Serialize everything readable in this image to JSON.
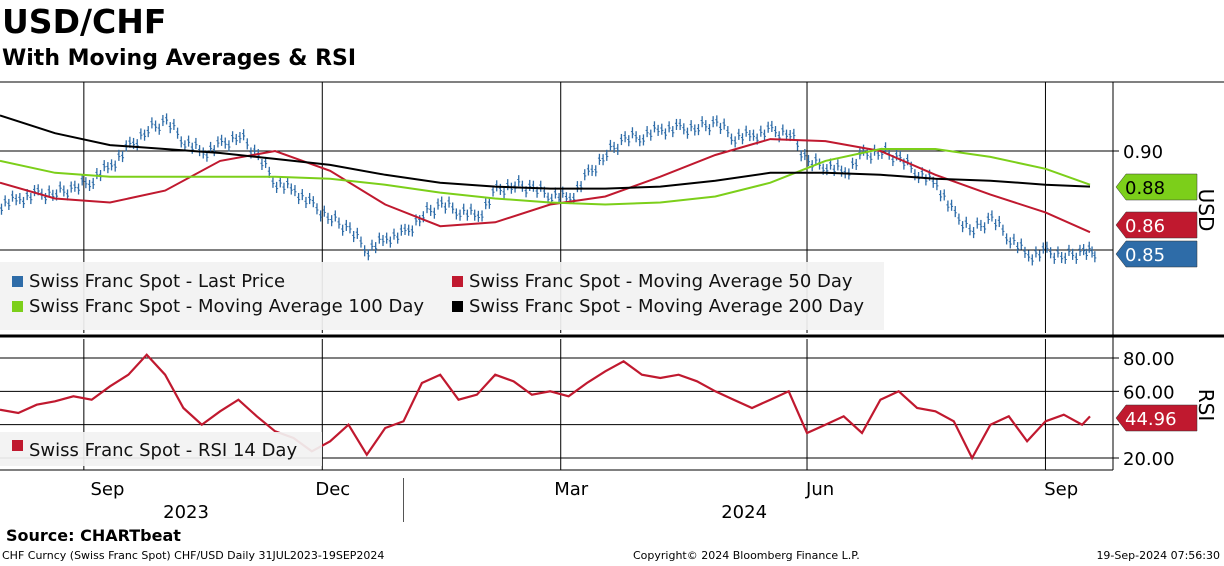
{
  "header": {
    "title": "USD/CHF",
    "subtitle": "With Moving Averages & RSI"
  },
  "source": "Source: CHARTbeat",
  "footer": {
    "left": "CHF Curncy (Swiss Franc Spot) CHF/USD  Daily 31JUL2023-19SEP2024",
    "center": "Copyright© 2024 Bloomberg Finance L.P.",
    "right": "19-Sep-2024 07:56:30"
  },
  "colors": {
    "last_price": "#2e6ca8",
    "ma50": "#c0192f",
    "ma100": "#7ccf1a",
    "ma200": "#000000",
    "rsi": "#c0192f",
    "legend_bg": "#f2f2f2",
    "grid": "#000000"
  },
  "chart_data": [
    {
      "type": "line",
      "panel": "price",
      "ylabel": "USD",
      "y_ticks": [
        0.9
      ],
      "y_tick_labels": [
        "0.90"
      ],
      "x_ticks": [
        "Sep",
        "Dec",
        "Mar",
        "Jun",
        "Sep"
      ],
      "x_years": [
        "2023",
        "2024"
      ],
      "x_range": [
        "2023-07-31",
        "2024-09-19"
      ],
      "grid": true,
      "legend_placement": "bottom-left",
      "last_value_labels": [
        {
          "series": "Swiss Franc Spot - Moving Average 100 Day",
          "label": "0.88",
          "value": 0.88
        },
        {
          "series": "Swiss Franc Spot - Moving Average 50 Day",
          "label": "0.86",
          "value": 0.86
        },
        {
          "series": "Swiss Franc Spot - Last Price",
          "label": "0.85",
          "value": 0.85
        }
      ],
      "series": [
        {
          "name": "Swiss Franc Spot - Last Price",
          "style": "bars",
          "x": [
            "2023-07-31",
            "2023-08-07",
            "2023-08-14",
            "2023-08-21",
            "2023-08-28",
            "2023-09-04",
            "2023-09-11",
            "2023-09-18",
            "2023-09-25",
            "2023-10-02",
            "2023-10-09",
            "2023-10-16",
            "2023-10-23",
            "2023-10-30",
            "2023-11-06",
            "2023-11-13",
            "2023-11-20",
            "2023-11-27",
            "2023-12-04",
            "2023-12-11",
            "2023-12-18",
            "2023-12-25",
            "2024-01-01",
            "2024-01-08",
            "2024-01-15",
            "2024-01-22",
            "2024-01-29",
            "2024-02-05",
            "2024-02-12",
            "2024-02-19",
            "2024-02-26",
            "2024-03-04",
            "2024-03-11",
            "2024-03-18",
            "2024-03-25",
            "2024-04-01",
            "2024-04-08",
            "2024-04-15",
            "2024-04-22",
            "2024-04-29",
            "2024-05-06",
            "2024-05-13",
            "2024-05-20",
            "2024-05-27",
            "2024-06-03",
            "2024-06-10",
            "2024-06-17",
            "2024-06-24",
            "2024-07-01",
            "2024-07-08",
            "2024-07-15",
            "2024-07-22",
            "2024-07-29",
            "2024-08-05",
            "2024-08-12",
            "2024-08-19",
            "2024-08-26",
            "2024-09-02",
            "2024-09-09",
            "2024-09-16"
          ],
          "values": [
            0.873,
            0.876,
            0.878,
            0.879,
            0.881,
            0.886,
            0.893,
            0.902,
            0.911,
            0.915,
            0.905,
            0.899,
            0.903,
            0.908,
            0.897,
            0.884,
            0.88,
            0.872,
            0.866,
            0.86,
            0.85,
            0.856,
            0.858,
            0.868,
            0.873,
            0.87,
            0.867,
            0.88,
            0.883,
            0.881,
            0.878,
            0.876,
            0.888,
            0.899,
            0.906,
            0.908,
            0.911,
            0.911,
            0.912,
            0.914,
            0.907,
            0.908,
            0.91,
            0.909,
            0.894,
            0.893,
            0.889,
            0.898,
            0.9,
            0.896,
            0.889,
            0.883,
            0.867,
            0.86,
            0.866,
            0.856,
            0.847,
            0.849,
            0.847,
            0.849
          ]
        },
        {
          "name": "Swiss Franc Spot - Moving Average 50 Day",
          "style": "line",
          "x": [
            "2023-07-31",
            "2023-08-21",
            "2023-09-11",
            "2023-10-02",
            "2023-10-23",
            "2023-11-13",
            "2023-12-04",
            "2023-12-25",
            "2024-01-15",
            "2024-02-05",
            "2024-02-26",
            "2024-03-18",
            "2024-04-08",
            "2024-04-29",
            "2024-05-20",
            "2024-06-10",
            "2024-07-01",
            "2024-07-22",
            "2024-08-12",
            "2024-09-02",
            "2024-09-19"
          ],
          "values": [
            0.884,
            0.876,
            0.874,
            0.88,
            0.895,
            0.9,
            0.89,
            0.873,
            0.862,
            0.864,
            0.873,
            0.877,
            0.887,
            0.898,
            0.906,
            0.905,
            0.9,
            0.888,
            0.878,
            0.869,
            0.859
          ]
        },
        {
          "name": "Swiss Franc Spot - Moving Average 100 Day",
          "style": "line",
          "x": [
            "2023-07-31",
            "2023-08-21",
            "2023-09-11",
            "2023-10-02",
            "2023-10-23",
            "2023-11-13",
            "2023-12-04",
            "2023-12-25",
            "2024-01-15",
            "2024-02-05",
            "2024-02-26",
            "2024-03-18",
            "2024-04-08",
            "2024-04-29",
            "2024-05-20",
            "2024-06-10",
            "2024-07-01",
            "2024-07-22",
            "2024-08-12",
            "2024-09-02",
            "2024-09-19"
          ],
          "values": [
            0.895,
            0.889,
            0.887,
            0.887,
            0.887,
            0.887,
            0.886,
            0.883,
            0.879,
            0.876,
            0.874,
            0.873,
            0.874,
            0.877,
            0.884,
            0.895,
            0.901,
            0.901,
            0.897,
            0.891,
            0.883
          ]
        },
        {
          "name": "Swiss Franc Spot - Moving Average 200 Day",
          "style": "line",
          "x": [
            "2023-07-31",
            "2023-08-21",
            "2023-09-11",
            "2023-10-02",
            "2023-10-23",
            "2023-11-13",
            "2023-12-04",
            "2023-12-25",
            "2024-01-15",
            "2024-02-05",
            "2024-02-26",
            "2024-03-18",
            "2024-04-08",
            "2024-04-29",
            "2024-05-20",
            "2024-06-10",
            "2024-07-01",
            "2024-07-22",
            "2024-08-12",
            "2024-09-02",
            "2024-09-19"
          ],
          "values": [
            0.918,
            0.909,
            0.903,
            0.901,
            0.899,
            0.896,
            0.893,
            0.888,
            0.884,
            0.882,
            0.881,
            0.881,
            0.882,
            0.885,
            0.889,
            0.889,
            0.888,
            0.886,
            0.885,
            0.883,
            0.882
          ]
        }
      ]
    },
    {
      "type": "line",
      "panel": "rsi",
      "ylabel": "RSI",
      "y_ticks": [
        20,
        40,
        60,
        80
      ],
      "y_tick_labels": [
        "20.00",
        "",
        "60.00",
        "80.00"
      ],
      "grid": true,
      "legend_placement": "bottom-left",
      "last_value_labels": [
        {
          "series": "Swiss Franc Spot - RSI 14 Day",
          "label": "44.96",
          "value": 44.96
        }
      ],
      "series": [
        {
          "name": "Swiss Franc Spot - RSI 14 Day",
          "x": [
            "2023-07-31",
            "2023-08-07",
            "2023-08-14",
            "2023-08-21",
            "2023-08-28",
            "2023-09-04",
            "2023-09-11",
            "2023-09-18",
            "2023-09-25",
            "2023-10-02",
            "2023-10-09",
            "2023-10-16",
            "2023-10-23",
            "2023-10-30",
            "2023-11-06",
            "2023-11-13",
            "2023-11-20",
            "2023-11-27",
            "2023-12-04",
            "2023-12-11",
            "2023-12-18",
            "2023-12-25",
            "2024-01-01",
            "2024-01-08",
            "2024-01-15",
            "2024-01-22",
            "2024-01-29",
            "2024-02-05",
            "2024-02-12",
            "2024-02-19",
            "2024-02-26",
            "2024-03-04",
            "2024-03-11",
            "2024-03-18",
            "2024-03-25",
            "2024-04-01",
            "2024-04-08",
            "2024-04-15",
            "2024-04-22",
            "2024-04-29",
            "2024-05-06",
            "2024-05-13",
            "2024-05-20",
            "2024-05-27",
            "2024-06-03",
            "2024-06-10",
            "2024-06-17",
            "2024-06-24",
            "2024-07-01",
            "2024-07-08",
            "2024-07-15",
            "2024-07-22",
            "2024-07-29",
            "2024-08-05",
            "2024-08-12",
            "2024-08-19",
            "2024-08-26",
            "2024-09-02",
            "2024-09-09",
            "2024-09-16",
            "2024-09-19"
          ],
          "values": [
            49,
            47,
            52,
            54,
            57,
            55,
            63,
            70,
            82,
            70,
            50,
            40,
            48,
            55,
            45,
            36,
            32,
            24,
            30,
            40,
            22,
            38,
            42,
            65,
            70,
            55,
            58,
            70,
            66,
            58,
            60,
            57,
            65,
            72,
            78,
            70,
            68,
            70,
            66,
            60,
            55,
            50,
            55,
            60,
            35,
            40,
            45,
            35,
            55,
            60,
            50,
            48,
            42,
            20,
            40,
            45,
            30,
            42,
            46,
            40,
            44.96
          ]
        }
      ]
    }
  ],
  "legend_price": [
    {
      "label": "Swiss Franc Spot - Last Price",
      "color": "#2e6ca8"
    },
    {
      "label": "Swiss Franc Spot - Moving Average 50 Day",
      "color": "#c0192f"
    },
    {
      "label": "Swiss Franc Spot - Moving Average 100 Day",
      "color": "#7ccf1a"
    },
    {
      "label": "Swiss Franc Spot - Moving Average 200 Day",
      "color": "#000000"
    }
  ],
  "legend_rsi": [
    {
      "label": "Swiss Franc Spot - RSI 14 Day",
      "color": "#c0192f"
    }
  ]
}
